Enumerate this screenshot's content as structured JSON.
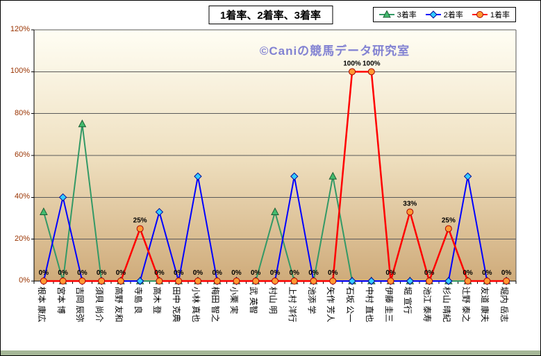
{
  "chart": {
    "title": "1着率、2着率、3着率",
    "watermark": "©Caniの競馬データ研究室"
  },
  "chart_data": {
    "type": "line",
    "title": "1着率、2着率、3着率",
    "categories": [
      "根本 康広",
      "宮本 博",
      "吉岡 辰弥",
      "須貝 尚介",
      "高野 友和",
      "寺島 良",
      "高木 登",
      "田中 克典",
      "小林 真也",
      "梅田 智之",
      "小栗 実",
      "武 英智",
      "村山 明",
      "上村 洋行",
      "池添 学",
      "矢作 芳人",
      "石坂 公一",
      "中村 直也",
      "伊藤 圭三",
      "堀 宣行",
      "池江 泰寿",
      "杉山 晴紀",
      "辻野 泰之",
      "友道 康夫",
      "堀内 岳志"
    ],
    "series": [
      {
        "name": "3着率",
        "marker": "triangle",
        "line_color": "#339966",
        "marker_fill": "#44bb6e",
        "marker_edge": "#1b5e34",
        "line_width": 2,
        "values": [
          33,
          0,
          75,
          0,
          0,
          0,
          0,
          0,
          0,
          0,
          0,
          0,
          33,
          0,
          0,
          50,
          0,
          0,
          0,
          0,
          0,
          0,
          0,
          0,
          0
        ]
      },
      {
        "name": "2着率",
        "marker": "diamond",
        "line_color": "#0000ff",
        "marker_fill": "#33ccff",
        "marker_edge": "#000099",
        "line_width": 2,
        "values": [
          0,
          40,
          0,
          0,
          0,
          0,
          33,
          0,
          50,
          0,
          0,
          0,
          0,
          50,
          0,
          0,
          0,
          0,
          0,
          0,
          0,
          0,
          50,
          0,
          0
        ]
      },
      {
        "name": "1着率",
        "marker": "circle",
        "line_color": "#ff0000",
        "marker_fill": "#ff9933",
        "marker_edge": "#aa0000",
        "line_width": 2.5,
        "values": [
          0,
          0,
          0,
          0,
          0,
          25,
          0,
          0,
          0,
          0,
          0,
          0,
          0,
          0,
          0,
          0,
          100,
          100,
          0,
          33,
          0,
          25,
          0,
          0,
          0
        ],
        "data_labels": true
      }
    ],
    "ylim": [
      0,
      120
    ],
    "ytick_step": 20,
    "ytick_labels": [
      "0%",
      "20%",
      "40%",
      "60%",
      "80%",
      "100%",
      "120%"
    ],
    "grid": true,
    "legend_position": "top-right",
    "colors": {
      "gridline": "#595959",
      "plot_border": "#595959",
      "axis": "#000000",
      "y_labels": "#993300",
      "x_labels": "#000000",
      "data_labels": "#000000",
      "watermark": "#8282d2",
      "bottom_strip": "#a6b898",
      "plot_gradient": [
        "#fffef4",
        "#efe0c0",
        "#cfab7a"
      ]
    }
  }
}
